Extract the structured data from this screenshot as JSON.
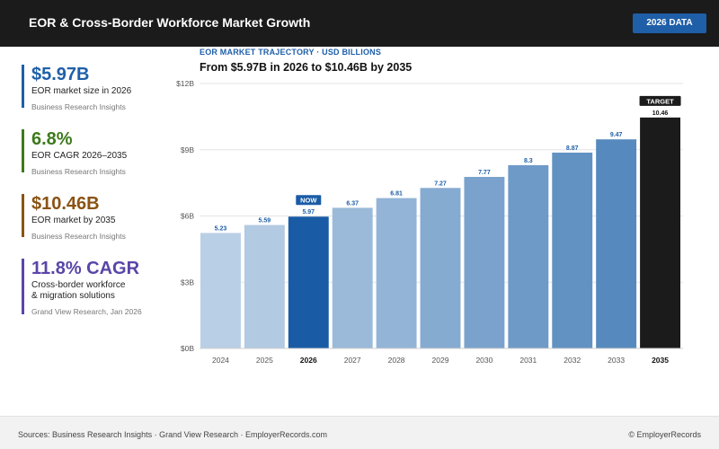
{
  "header": {
    "title": "EOR & Cross-Border Workforce Market Growth",
    "badge": "2026 DATA",
    "bg_color": "#1b1b1b",
    "badge_color": "#1f5fa8"
  },
  "stats": [
    {
      "value": "$5.97B",
      "label": "EOR market size in 2026",
      "source": "Business Research Insights",
      "color": "#1f5fa8"
    },
    {
      "value": "6.8%",
      "label": "EOR CAGR 2026–2035",
      "source": "Business Research Insights",
      "color": "#3d7a1c"
    },
    {
      "value": "$10.46B",
      "label": "EOR market by 2035",
      "source": "Business Research Insights",
      "color": "#8a5314"
    },
    {
      "value": "11.8% CAGR",
      "label": "Cross-border workforce\n& migration solutions",
      "source": "Grand View Research, Jan 2026",
      "color": "#5a45a8"
    }
  ],
  "chart": {
    "subtitle": "EOR MARKET TRAJECTORY · USD BILLIONS",
    "title": "From $5.97B in 2026 to $10.46B by 2035"
  },
  "chart_data": {
    "type": "bar",
    "categories": [
      "2024",
      "2025",
      "2026",
      "2027",
      "2028",
      "2029",
      "2030",
      "2031",
      "2032",
      "2033",
      "2035"
    ],
    "values": [
      5.23,
      5.59,
      5.97,
      6.37,
      6.81,
      7.27,
      7.77,
      8.3,
      8.87,
      9.47,
      10.46
    ],
    "data_labels": [
      "5.23",
      "5.59",
      "5.97",
      "6.37",
      "6.81",
      "7.27",
      "7.77",
      "8.3",
      "8.87",
      "9.47",
      "10.46"
    ],
    "bar_colors": [
      "#b9cfe5",
      "#b2cae2",
      "#1a5ba6",
      "#9bbad9",
      "#93b4d6",
      "#86abd1",
      "#7aa2cc",
      "#6e9ac7",
      "#6292c2",
      "#5689bd",
      "#1b1b1b"
    ],
    "bold_categories": [
      "2026",
      "2035"
    ],
    "callouts": [
      {
        "category": "2026",
        "text": "NOW",
        "color": "#1a5ba6"
      },
      {
        "category": "2035",
        "text": "TARGET",
        "color": "#1b1b1b"
      }
    ],
    "yticks": [
      0,
      3,
      6,
      9,
      12
    ],
    "ytick_labels": [
      "$0B",
      "$3B",
      "$6B",
      "$9B",
      "$12B"
    ],
    "ylim": [
      0,
      12
    ],
    "grid": true,
    "label_color": "#1f5fa8"
  },
  "footer": {
    "sources": "Sources: Business Research Insights · Grand View Research · EmployerRecords.com",
    "copyright": "© EmployerRecords"
  }
}
